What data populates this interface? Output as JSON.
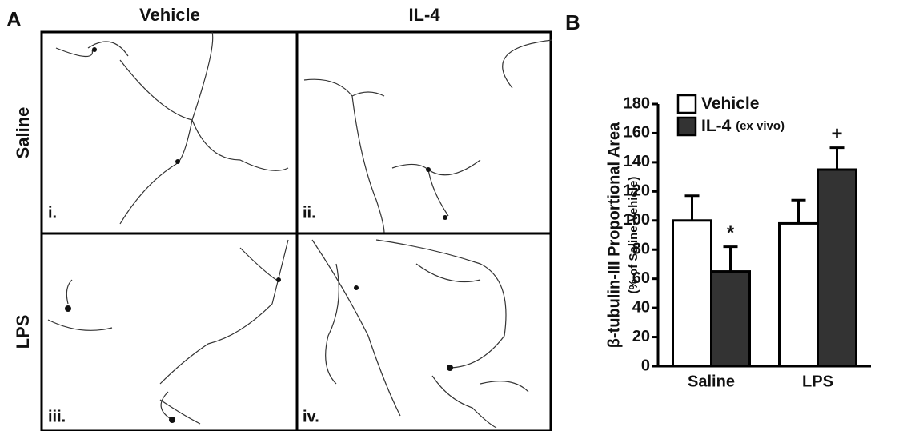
{
  "panel_a": {
    "label": "A",
    "columns": [
      "Vehicle",
      "IL-4"
    ],
    "rows": [
      "Saline",
      "LPS"
    ],
    "panels": [
      "i.",
      "ii.",
      "iii.",
      "iv."
    ]
  },
  "chart_data": {
    "type": "bar",
    "panel_label": "B",
    "y_label": "β-tubulin-III Proportional Area",
    "y_sublabel": "(% of Saline-Vehicle)",
    "categories": [
      "Saline",
      "LPS"
    ],
    "series": [
      {
        "name": "Vehicle",
        "color": "#ffffff",
        "values": [
          100,
          98
        ],
        "errors": [
          17,
          16
        ]
      },
      {
        "name": "IL-4",
        "note": "(ex vivo)",
        "color": "#333333",
        "values": [
          65,
          135
        ],
        "errors": [
          17,
          15
        ]
      }
    ],
    "annotations": [
      {
        "label": "*",
        "x": "Saline",
        "series": "IL-4"
      },
      {
        "label": "+",
        "x": "LPS",
        "series": "IL-4"
      }
    ],
    "ylim": [
      0,
      180
    ],
    "yticks": [
      0,
      20,
      40,
      60,
      80,
      100,
      120,
      140,
      160,
      180
    ],
    "grid": false
  }
}
